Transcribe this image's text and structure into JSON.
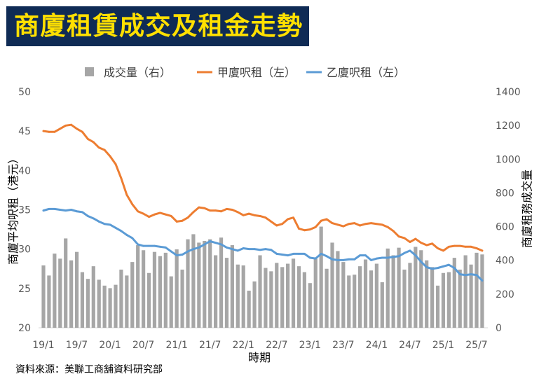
{
  "colors": {
    "banner_background": "#0f2b55",
    "banner_text": "#ffe000"
  },
  "source": "資料來源：美聯工商舖資料研究部",
  "chart_data": {
    "type": "bar",
    "title": "商廈租賃成交及租金走勢",
    "xlabel": "時期",
    "ylabel": "商廈平均呎租（港元）",
    "ylabel_right": "商廈租務成交量",
    "ylim": [
      20,
      50
    ],
    "ylim_right": [
      0,
      1400
    ],
    "yticks": [
      20,
      25,
      30,
      35,
      40,
      45,
      50
    ],
    "yticks_right": [
      0,
      200,
      400,
      600,
      800,
      1000,
      1200,
      1400
    ],
    "grid": false,
    "legend_position": "top",
    "categories": [
      "19/1",
      "19/7",
      "20/1",
      "20/7",
      "21/1",
      "21/7",
      "22/1",
      "22/7",
      "23/1",
      "23/7",
      "24/1",
      "24/7",
      "25/1",
      "25/7"
    ],
    "series": [
      {
        "name": "成交量（右）",
        "type": "bar",
        "axis": "right",
        "color": "#a6a6a6",
        "values": [
          [
            370,
            310,
            440,
            410,
            530,
            400
          ],
          [
            450,
            330,
            290,
            365,
            285,
            250
          ],
          [
            235,
            255,
            345,
            310,
            390,
            490
          ],
          [
            460,
            325,
            450,
            425,
            445,
            305
          ],
          [
            465,
            345,
            525,
            555,
            505,
            515
          ],
          [
            525,
            430,
            535,
            415,
            490,
            375
          ],
          [
            370,
            220,
            275,
            430,
            355,
            335
          ],
          [
            385,
            360,
            380,
            410,
            365,
            330
          ],
          [
            265,
            410,
            600,
            350,
            505,
            455
          ],
          [
            390,
            310,
            315,
            365,
            405,
            340
          ],
          [
            380,
            270,
            470,
            430,
            475,
            345
          ],
          [
            385,
            480,
            460,
            400,
            360,
            250
          ],
          [
            325,
            330,
            415,
            345,
            430,
            375
          ],
          [
            445,
            435
          ]
        ]
      },
      {
        "name": "甲廈呎租（左）",
        "type": "line",
        "axis": "left",
        "color": "#ed7d31",
        "values": [
          [
            45.0,
            44.9,
            44.9,
            45.3,
            45.7,
            45.8
          ],
          [
            45.3,
            44.9,
            44.0,
            43.6,
            42.9,
            42.6
          ],
          [
            41.8,
            40.8,
            39.0,
            36.9,
            35.7,
            34.8
          ],
          [
            34.5,
            34.1,
            34.4,
            34.6,
            34.4,
            34.2
          ],
          [
            33.5,
            33.6,
            34.0,
            34.7,
            35.3,
            35.2
          ],
          [
            34.9,
            34.9,
            34.8,
            35.1,
            35.0,
            34.7
          ],
          [
            34.3,
            34.5,
            34.3,
            34.2,
            34.0,
            33.5
          ],
          [
            33.0,
            33.2,
            33.8,
            34.0,
            32.6,
            32.4
          ],
          [
            32.5,
            32.8,
            33.6,
            33.8,
            33.3,
            33.1
          ],
          [
            32.9,
            33.2,
            33.3,
            33.0,
            33.2,
            33.3
          ],
          [
            33.2,
            33.1,
            32.8,
            32.3,
            31.6,
            31.4
          ],
          [
            30.9,
            31.3,
            30.8,
            30.5,
            30.7,
            30.1
          ],
          [
            29.8,
            30.3,
            30.4,
            30.4,
            30.3,
            30.3
          ],
          [
            30.1,
            29.8
          ]
        ]
      },
      {
        "name": "乙廈呎租（左）",
        "type": "line",
        "axis": "left",
        "color": "#5b9bd5",
        "values": [
          [
            34.9,
            35.1,
            35.1,
            35.0,
            34.9,
            35.0
          ],
          [
            34.8,
            34.7,
            34.2,
            33.9,
            33.5,
            33.2
          ],
          [
            33.1,
            32.7,
            32.3,
            31.8,
            31.4,
            30.6
          ],
          [
            30.4,
            30.4,
            30.4,
            30.3,
            30.2,
            29.7
          ],
          [
            29.2,
            29.3,
            29.7,
            30.0,
            30.2,
            30.6
          ],
          [
            31.0,
            30.8,
            30.6,
            30.2,
            30.0,
            29.8
          ],
          [
            30.1,
            30.0,
            30.0,
            29.9,
            30.0,
            29.9
          ],
          [
            29.4,
            29.3,
            29.2,
            29.4,
            29.4,
            29.4
          ],
          [
            28.9,
            28.8,
            29.4,
            29.1,
            28.7,
            28.6
          ],
          [
            28.6,
            28.7,
            28.7,
            29.2,
            29.2,
            28.6
          ],
          [
            28.8,
            28.9,
            28.9,
            29.0,
            29.1,
            29.5
          ],
          [
            29.8,
            29.2,
            28.4,
            27.7,
            27.5,
            27.6
          ],
          [
            27.8,
            28.0,
            27.6,
            26.8,
            26.7,
            26.8
          ],
          [
            26.7,
            26.0
          ]
        ]
      }
    ]
  }
}
